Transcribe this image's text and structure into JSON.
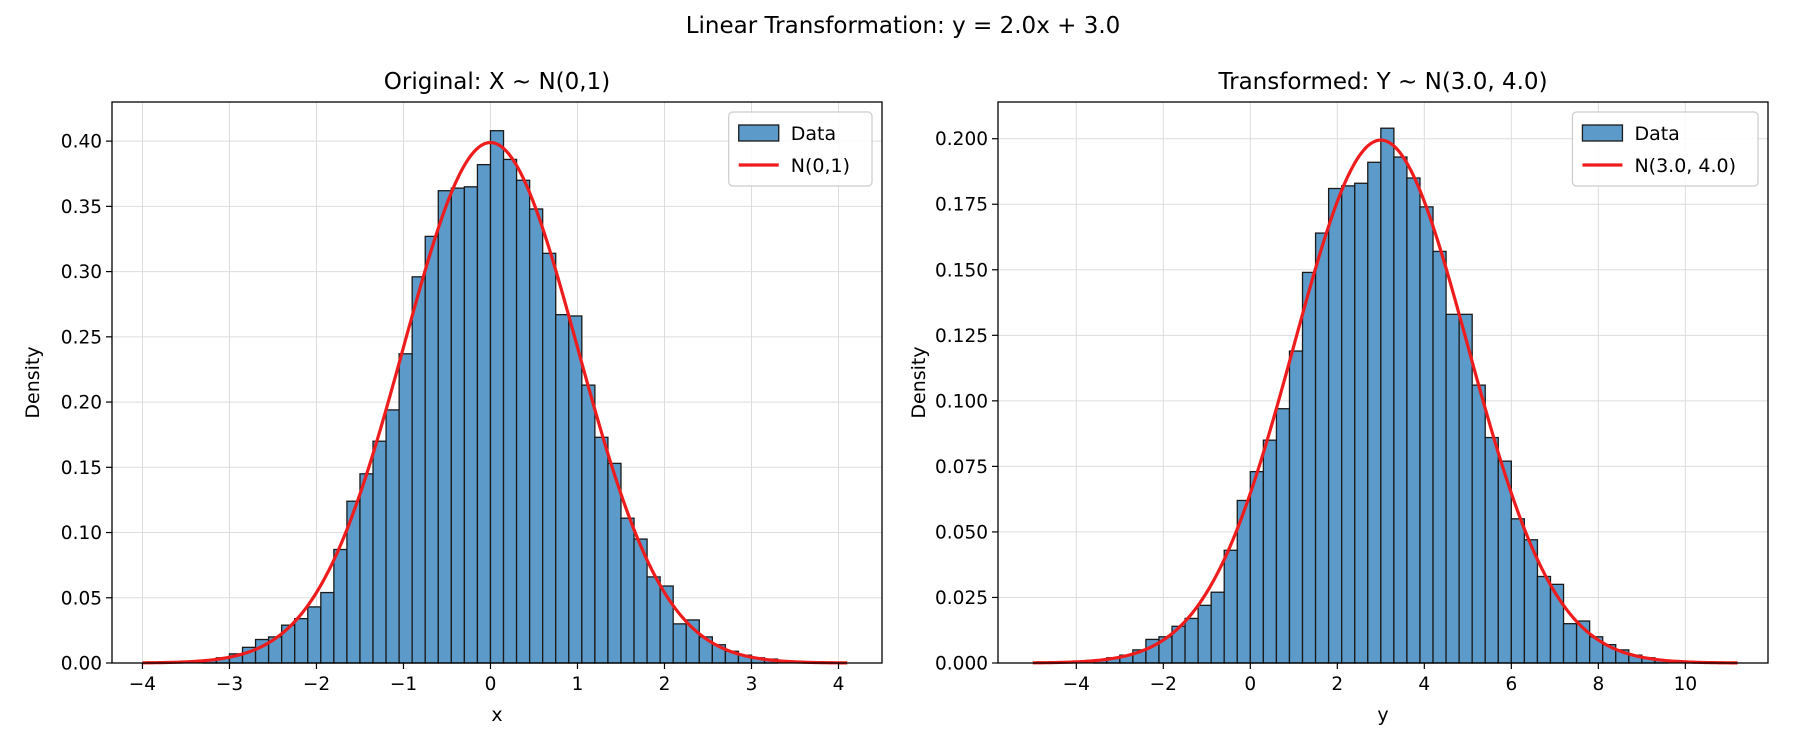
{
  "figure": {
    "suptitle": "Linear Transformation: y = 2.0x + 3.0"
  },
  "colors": {
    "bar_fill": "#5b9ac9",
    "bar_edge": "#1a1a1a",
    "curve": "#ee1c1c",
    "grid": "#dddddd"
  },
  "chart_data": [
    {
      "type": "bar",
      "title": "Original: X ~ N(0,1)",
      "xlabel": "x",
      "ylabel": "Density",
      "xlim": [
        -4.35,
        4.5
      ],
      "ylim": [
        0,
        0.43
      ],
      "xticks": [
        -4,
        -3,
        -2,
        -1,
        0,
        1,
        2,
        3,
        4
      ],
      "xtick_labels": [
        "−4",
        "−3",
        "−2",
        "−1",
        "0",
        "1",
        "2",
        "3",
        "4"
      ],
      "yticks": [
        0.0,
        0.05,
        0.1,
        0.15,
        0.2,
        0.25,
        0.3,
        0.35,
        0.4
      ],
      "ytick_labels": [
        "0.00",
        "0.05",
        "0.10",
        "0.15",
        "0.20",
        "0.25",
        "0.30",
        "0.35",
        "0.40"
      ],
      "grid": true,
      "legend": "top-right",
      "legend_labels": [
        "Data",
        "N(0,1)"
      ],
      "histogram": {
        "bin_start": -3.3,
        "bin_width": 0.15,
        "values": [
          0.002,
          0.004,
          0.007,
          0.012,
          0.018,
          0.02,
          0.029,
          0.034,
          0.043,
          0.054,
          0.087,
          0.124,
          0.145,
          0.17,
          0.194,
          0.237,
          0.296,
          0.327,
          0.362,
          0.364,
          0.365,
          0.382,
          0.408,
          0.386,
          0.37,
          0.348,
          0.314,
          0.267,
          0.266,
          0.213,
          0.173,
          0.153,
          0.111,
          0.095,
          0.066,
          0.059,
          0.03,
          0.033,
          0.02,
          0.014,
          0.009,
          0.006,
          0.004,
          0.003
        ]
      },
      "curve": {
        "name": "N(0,1)",
        "mean": 0.0,
        "sd": 1.0,
        "x_range": [
          -4.0,
          4.1
        ]
      }
    },
    {
      "type": "bar",
      "title": "Transformed: Y ~ N(3.0, 4.0)",
      "xlabel": "y",
      "ylabel": "Density",
      "xlim": [
        -5.8,
        11.9
      ],
      "ylim": [
        0,
        0.214
      ],
      "xticks": [
        -4,
        -2,
        0,
        2,
        4,
        6,
        8,
        10
      ],
      "xtick_labels": [
        "−4",
        "−2",
        "0",
        "2",
        "4",
        "6",
        "8",
        "10"
      ],
      "yticks": [
        0.0,
        0.025,
        0.05,
        0.075,
        0.1,
        0.125,
        0.15,
        0.175,
        0.2
      ],
      "ytick_labels": [
        "0.000",
        "0.025",
        "0.050",
        "0.075",
        "0.100",
        "0.125",
        "0.150",
        "0.175",
        "0.200"
      ],
      "grid": true,
      "legend": "top-right",
      "legend_labels": [
        "Data",
        "N(3.0, 4.0)"
      ],
      "histogram": {
        "bin_start": -3.6,
        "bin_width": 0.3,
        "values": [
          0.001,
          0.002,
          0.003,
          0.005,
          0.009,
          0.01,
          0.014,
          0.017,
          0.022,
          0.027,
          0.043,
          0.062,
          0.073,
          0.085,
          0.097,
          0.119,
          0.149,
          0.164,
          0.181,
          0.182,
          0.183,
          0.191,
          0.204,
          0.193,
          0.185,
          0.174,
          0.157,
          0.133,
          0.133,
          0.106,
          0.086,
          0.077,
          0.055,
          0.047,
          0.033,
          0.03,
          0.015,
          0.016,
          0.01,
          0.007,
          0.005,
          0.003,
          0.002,
          0.001
        ]
      },
      "curve": {
        "name": "N(3.0, 4.0)",
        "mean": 3.0,
        "sd": 2.0,
        "x_range": [
          -5.0,
          11.2
        ]
      }
    }
  ]
}
